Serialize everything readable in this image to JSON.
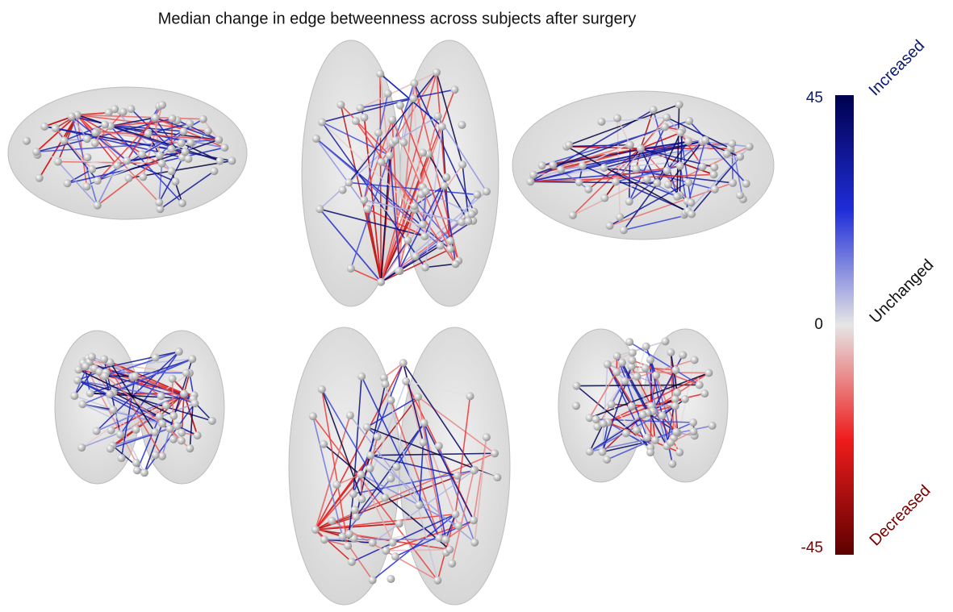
{
  "title": "Median change in edge betweenness across subjects after surgery",
  "colorbar": {
    "range": [
      -45,
      45
    ],
    "ticks": [
      45,
      0,
      -45
    ],
    "labels": [
      "Increased",
      "Unchanged",
      "Decreased"
    ]
  }
}
